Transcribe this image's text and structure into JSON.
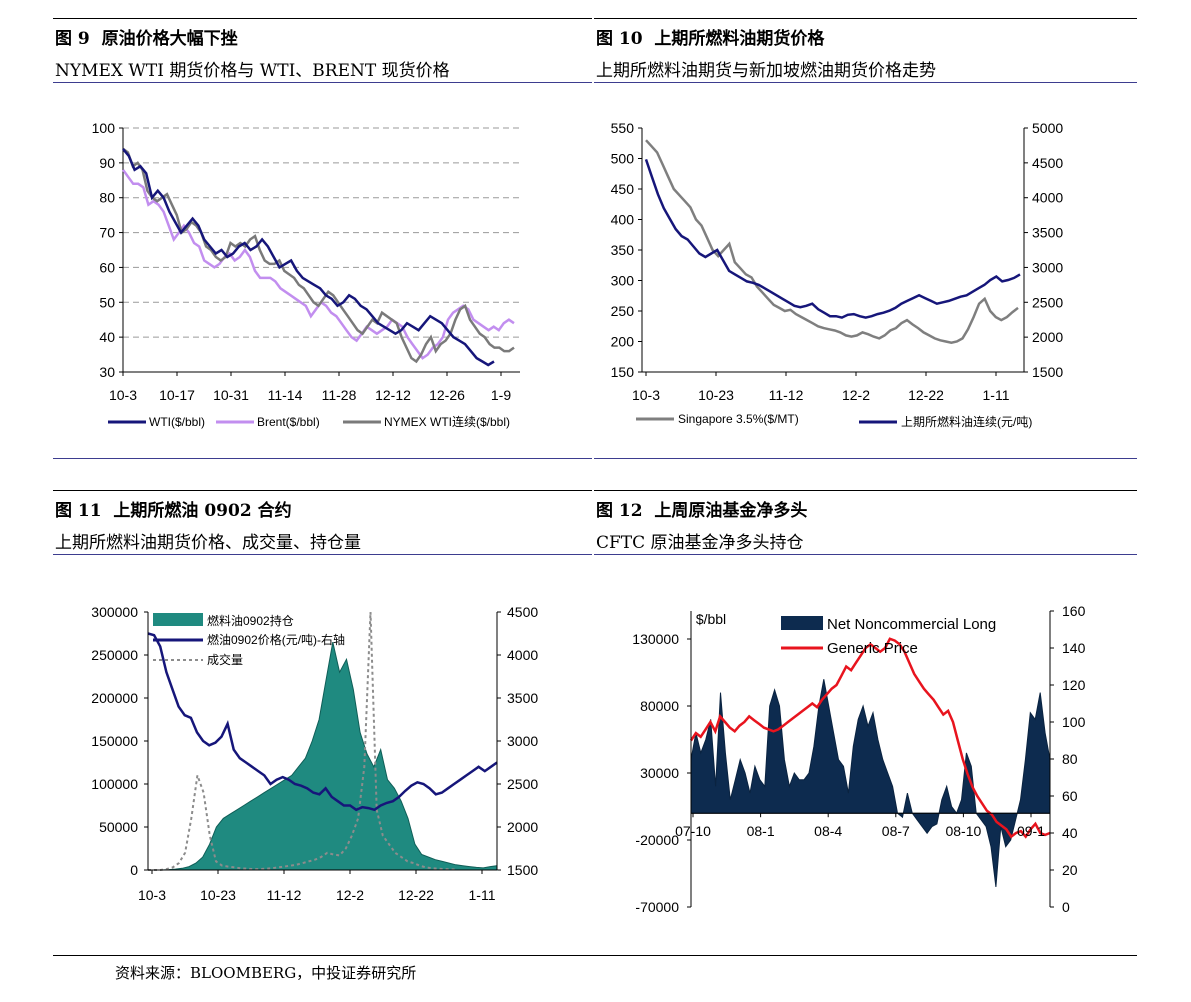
{
  "charts": [
    {
      "label": "图 9",
      "title": "原油价格大幅下挫",
      "subtitle": "NYMEX WTI 期货价格与 WTI、BRENT 现货价格",
      "chart_data": {
        "type": "line",
        "ylim": [
          30,
          100
        ],
        "yticks": [
          "100",
          "90",
          "80",
          "70",
          "60",
          "50",
          "40",
          "30"
        ],
        "xlabels": [
          "10-3",
          "10-17",
          "10-31",
          "11-14",
          "11-28",
          "12-12",
          "12-26",
          "1-9"
        ],
        "grid": true,
        "legend_position": "bottom",
        "series": [
          {
            "name": "WTI($/bbl)",
            "color": "#16167a",
            "values": [
              94,
              92,
              88,
              89,
              87,
              80,
              82,
              80,
              76,
              73,
              70,
              72,
              74,
              72,
              68,
              66,
              64,
              65,
              63,
              64,
              66,
              67,
              65,
              66,
              68,
              66,
              63,
              60,
              61,
              62,
              59,
              57,
              56,
              55,
              54,
              52,
              51,
              49,
              50,
              52,
              51,
              49,
              48,
              46,
              44,
              43,
              42,
              41,
              42,
              44,
              43,
              42,
              44,
              46,
              45,
              44,
              42,
              40,
              39,
              38,
              36,
              34,
              33,
              32,
              33
            ]
          },
          {
            "name": "Brent($/bbl)",
            "color": "#c28eef",
            "values": [
              88,
              86,
              84,
              84,
              83,
              78,
              79,
              78,
              76,
              72,
              68,
              70,
              72,
              70,
              67,
              66,
              62,
              61,
              60,
              61,
              63,
              64,
              62,
              63,
              65,
              63,
              59,
              57,
              57,
              57,
              56,
              54,
              53,
              52,
              51,
              50,
              49,
              46,
              48,
              50,
              49,
              47,
              46,
              44,
              42,
              40,
              39,
              41,
              43,
              42,
              41,
              42,
              43,
              45,
              44,
              43,
              40,
              38,
              36,
              34,
              35,
              37,
              38,
              40,
              45,
              47,
              48,
              49,
              48,
              45,
              44,
              43,
              42,
              43,
              42,
              44,
              45,
              44
            ]
          },
          {
            "name": "NYMEX WTI连续($/bbl)",
            "color": "#7a7a7a",
            "values": [
              94,
              93,
              89,
              90,
              88,
              82,
              80,
              79,
              80,
              81,
              78,
              75,
              70,
              71,
              73,
              72,
              70,
              66,
              65,
              63,
              62,
              63,
              67,
              66,
              67,
              66,
              68,
              69,
              65,
              62,
              61,
              61,
              62,
              59,
              58,
              57,
              55,
              54,
              52,
              50,
              49,
              51,
              53,
              52,
              50,
              48,
              46,
              44,
              42,
              41,
              43,
              45,
              44,
              47,
              46,
              45,
              44,
              40,
              37,
              34,
              33,
              35,
              38,
              40,
              36,
              38,
              39,
              41,
              45,
              48,
              49,
              45,
              43,
              41,
              40,
              38,
              37,
              37,
              36,
              36,
              37
            ]
          }
        ]
      }
    },
    {
      "label": "图 10",
      "title": "上期所燃料油期货价格",
      "subtitle": "上期所燃料油期货与新加坡燃油期货价格走势",
      "chart_data": {
        "type": "line",
        "ylim": [
          150,
          550
        ],
        "y2lim": [
          1500,
          5000
        ],
        "yticks": [
          "550",
          "500",
          "450",
          "400",
          "350",
          "300",
          "250",
          "200",
          "150"
        ],
        "y2ticks": [
          "5000",
          "4500",
          "4000",
          "3500",
          "3000",
          "2500",
          "2000",
          "1500"
        ],
        "xlabels": [
          "10-3",
          "10-23",
          "11-12",
          "12-2",
          "12-22",
          "1-11"
        ],
        "grid": false,
        "legend_position": "bottom",
        "series": [
          {
            "name": "Singapore 3.5%($/MT)",
            "color": "#7f7f7f",
            "axis": "left",
            "values": [
              530,
              520,
              510,
              490,
              470,
              450,
              440,
              430,
              420,
              400,
              390,
              370,
              350,
              340,
              350,
              360,
              330,
              320,
              310,
              305,
              290,
              280,
              270,
              260,
              255,
              250,
              252,
              245,
              240,
              235,
              230,
              225,
              222,
              220,
              218,
              215,
              210,
              208,
              210,
              215,
              212,
              208,
              205,
              210,
              218,
              222,
              230,
              235,
              228,
              222,
              215,
              210,
              205,
              202,
              200,
              198,
              200,
              205,
              220,
              240,
              262,
              270,
              250,
              240,
              235,
              240,
              248,
              255
            ]
          },
          {
            "name": "上期所燃料油连续(元/吨)",
            "color": "#16167a",
            "axis": "right",
            "values": [
              4550,
              4300,
              4050,
              3850,
              3700,
              3550,
              3450,
              3400,
              3300,
              3200,
              3150,
              3200,
              3250,
              3100,
              2950,
              2900,
              2850,
              2800,
              2780,
              2750,
              2700,
              2650,
              2600,
              2550,
              2500,
              2450,
              2430,
              2450,
              2480,
              2400,
              2350,
              2300,
              2300,
              2280,
              2320,
              2330,
              2300,
              2280,
              2300,
              2330,
              2350,
              2380,
              2420,
              2480,
              2520,
              2560,
              2600,
              2560,
              2520,
              2480,
              2500,
              2520,
              2550,
              2580,
              2600,
              2650,
              2700,
              2750,
              2820,
              2870,
              2800,
              2820,
              2850,
              2900
            ]
          }
        ]
      }
    },
    {
      "label": "图 11",
      "title": "上期所燃油 0902 合约",
      "subtitle": "上期所燃料油期货价格、成交量、持仓量",
      "chart_data": {
        "type": "area",
        "ylim": [
          0,
          300000
        ],
        "y2lim": [
          1500,
          4500
        ],
        "yticks": [
          "300000",
          "250000",
          "200000",
          "150000",
          "100000",
          "50000",
          "0"
        ],
        "y2ticks": [
          "4500",
          "4000",
          "3500",
          "3000",
          "2500",
          "2000",
          "1500"
        ],
        "xlabels": [
          "10-3",
          "10-23",
          "11-12",
          "12-2",
          "12-22",
          "1-11"
        ],
        "grid": false,
        "legend_position": "top-left",
        "series": [
          {
            "name": "燃料油0902持仓",
            "color": "#1f8a80",
            "kind": "area",
            "axis": "left",
            "values": [
              0,
              0,
              0,
              500,
              1000,
              2000,
              4000,
              8000,
              15000,
              30000,
              50000,
              60000,
              65000,
              70000,
              75000,
              80000,
              85000,
              90000,
              95000,
              100000,
              105000,
              110000,
              120000,
              130000,
              150000,
              175000,
              220000,
              265000,
              230000,
              245000,
              210000,
              160000,
              135000,
              120000,
              140000,
              105000,
              95000,
              80000,
              60000,
              30000,
              18000,
              15000,
              12000,
              10000,
              8000,
              6000,
              5000,
              4000,
              3000,
              2500,
              4000,
              5000
            ]
          },
          {
            "name": "燃油0902价格(元/吨)-右轴",
            "color": "#16167a",
            "kind": "line",
            "axis": "right",
            "values": [
              4250,
              4230,
              4100,
              3800,
              3600,
              3400,
              3300,
              3270,
              3100,
              3000,
              2950,
              2980,
              3050,
              3200,
              2900,
              2800,
              2750,
              2700,
              2650,
              2600,
              2500,
              2550,
              2580,
              2550,
              2500,
              2480,
              2450,
              2400,
              2380,
              2450,
              2350,
              2300,
              2250,
              2250,
              2200,
              2230,
              2220,
              2200,
              2250,
              2280,
              2300,
              2350,
              2420,
              2480,
              2520,
              2500,
              2450,
              2380,
              2400,
              2450,
              2500,
              2550,
              2600,
              2650,
              2700,
              2650,
              2700,
              2750
            ]
          },
          {
            "name": "成交量",
            "color": "#8c8c8c",
            "kind": "dashed",
            "axis": "left",
            "values": [
              0,
              0,
              0,
              1000,
              3000,
              8000,
              20000,
              60000,
              110000,
              90000,
              40000,
              10000,
              5000,
              4000,
              3000,
              2000,
              1500,
              1000,
              1000,
              1500,
              2000,
              3000,
              4000,
              5000,
              6000,
              8000,
              10000,
              12000,
              15000,
              20000,
              18000,
              17000,
              25000,
              40000,
              60000,
              120000,
              300000,
              70000,
              40000,
              30000,
              20000,
              15000,
              10000,
              8000,
              5000,
              3000,
              2000,
              1500,
              1000,
              800,
              500
            ]
          }
        ]
      }
    },
    {
      "label": "图 12",
      "title": "上周原油基金净多头",
      "subtitle": "CFTC  原油基金净多头持仓",
      "chart_data": {
        "type": "area",
        "ylim": [
          -70000,
          130000
        ],
        "y2lim": [
          0,
          160
        ],
        "ylabel": "$/bbl",
        "yticks": [
          "130000",
          "80000",
          "30000",
          "-20000",
          "-70000"
        ],
        "y2ticks": [
          "160",
          "140",
          "120",
          "100",
          "80",
          "60",
          "40",
          "20",
          "0"
        ],
        "xlabels": [
          "07-10",
          "08-1",
          "08-4",
          "08-7",
          "08-10",
          "09-1"
        ],
        "grid": false,
        "legend_position": "top",
        "series": [
          {
            "name": "Net Noncommercial Long",
            "color": "#0d2b4f",
            "kind": "area",
            "axis": "left",
            "values": [
              40000,
              60000,
              45000,
              55000,
              70000,
              20000,
              90000,
              45000,
              10000,
              25000,
              40000,
              30000,
              15000,
              35000,
              25000,
              20000,
              80000,
              92000,
              80000,
              40000,
              20000,
              30000,
              25000,
              25000,
              30000,
              50000,
              80000,
              100000,
              80000,
              60000,
              40000,
              35000,
              15000,
              50000,
              70000,
              80000,
              65000,
              75000,
              55000,
              40000,
              30000,
              20000,
              0,
              -3000,
              15000,
              0,
              -5000,
              -10000,
              -15000,
              -10000,
              -8000,
              10000,
              20000,
              5000,
              0,
              10000,
              45000,
              35000,
              0,
              -5000,
              -10000,
              -25000,
              -55000,
              -10000,
              -25000,
              -20000,
              -5000,
              10000,
              40000,
              75000,
              70000,
              90000,
              60000,
              40000
            ]
          },
          {
            "name": "Generic Price",
            "color": "#e8141e",
            "kind": "line",
            "axis": "right",
            "values": [
              90,
              94,
              92,
              96,
              100,
              95,
              103,
              100,
              97,
              95,
              98,
              100,
              103,
              101,
              99,
              97,
              96,
              95,
              96,
              98,
              100,
              102,
              104,
              106,
              108,
              110,
              108,
              112,
              115,
              118,
              120,
              125,
              130,
              128,
              132,
              136,
              140,
              142,
              140,
              138,
              140,
              145,
              144,
              142,
              138,
              132,
              126,
              122,
              118,
              115,
              112,
              108,
              104,
              106,
              100,
              90,
              80,
              72,
              65,
              60,
              56,
              52,
              50,
              46,
              44,
              42,
              38,
              40,
              41,
              38,
              42,
              45,
              40,
              39,
              40
            ]
          }
        ]
      }
    }
  ],
  "source": "资料来源：BLOOMBERG，中投证券研究所"
}
